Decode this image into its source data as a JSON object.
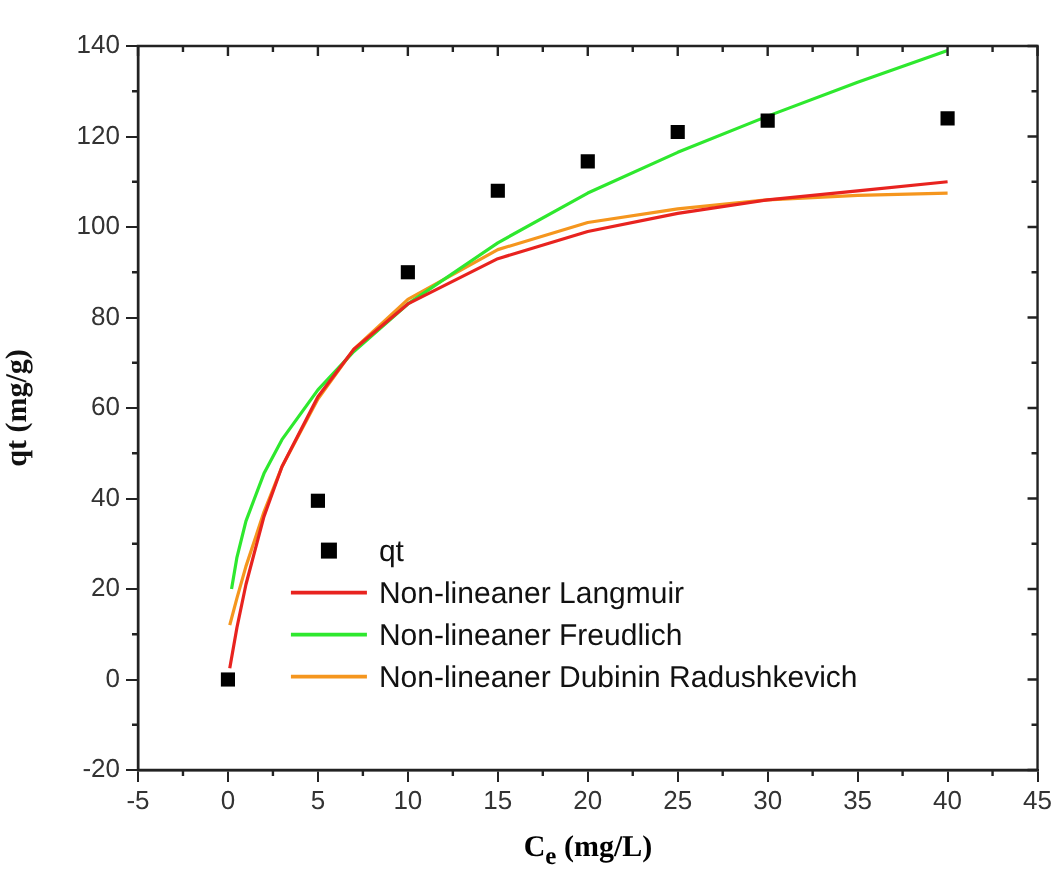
{
  "chart_data": {
    "type": "scatter",
    "xlabel": "C$_{e}$ (mg/L)",
    "ylabel": "qt (mg/g)",
    "xlim": [
      -5,
      45
    ],
    "xticks": [
      -5,
      0,
      5,
      10,
      15,
      20,
      25,
      30,
      35,
      40,
      45
    ],
    "ylim": [
      -20,
      140
    ],
    "yticks": [
      -20,
      0,
      20,
      40,
      60,
      80,
      100,
      120,
      140
    ],
    "grid": false,
    "legend": "bottom left",
    "series": [
      {
        "name": "qt",
        "type": "scatter",
        "marker": "square",
        "color": "#000000",
        "x": [
          0,
          5,
          10,
          15,
          20,
          25,
          30,
          40
        ],
        "values": [
          0,
          39.5,
          90,
          108,
          114.5,
          121,
          123.5,
          124
        ]
      },
      {
        "name": "Non-lineaner Langmuir",
        "type": "line",
        "marker": "none",
        "color": "#e8231f",
        "x": [
          0.1,
          0.5,
          1,
          2,
          3,
          5,
          7,
          10,
          15,
          20,
          25,
          30,
          35,
          40
        ],
        "values": [
          2.5,
          11.5,
          21,
          36,
          47,
          62.5,
          73,
          83,
          93,
          99,
          103,
          106,
          108,
          110
        ]
      },
      {
        "name": "Non-lineaner Freudlich",
        "type": "line",
        "marker": "none",
        "color": "#2ee82e",
        "x": [
          0.2,
          0.5,
          1,
          2,
          3,
          5,
          7,
          10,
          15,
          20,
          25,
          30,
          35,
          40
        ],
        "values": [
          20,
          27,
          35,
          45.5,
          53,
          64,
          72.5,
          83,
          96.5,
          107.5,
          116.5,
          124.5,
          132,
          139
        ]
      },
      {
        "name": "Non-lineaner Dubinin Radushkevich",
        "type": "line",
        "marker": "none",
        "color": "#f5961e",
        "x": [
          0.1,
          0.5,
          1,
          2,
          3,
          5,
          7,
          10,
          15,
          20,
          25,
          30,
          35,
          40
        ],
        "values": [
          12,
          18,
          25,
          37,
          47,
          62,
          73,
          84,
          95,
          101,
          104,
          106,
          107,
          107.5
        ]
      }
    ]
  }
}
